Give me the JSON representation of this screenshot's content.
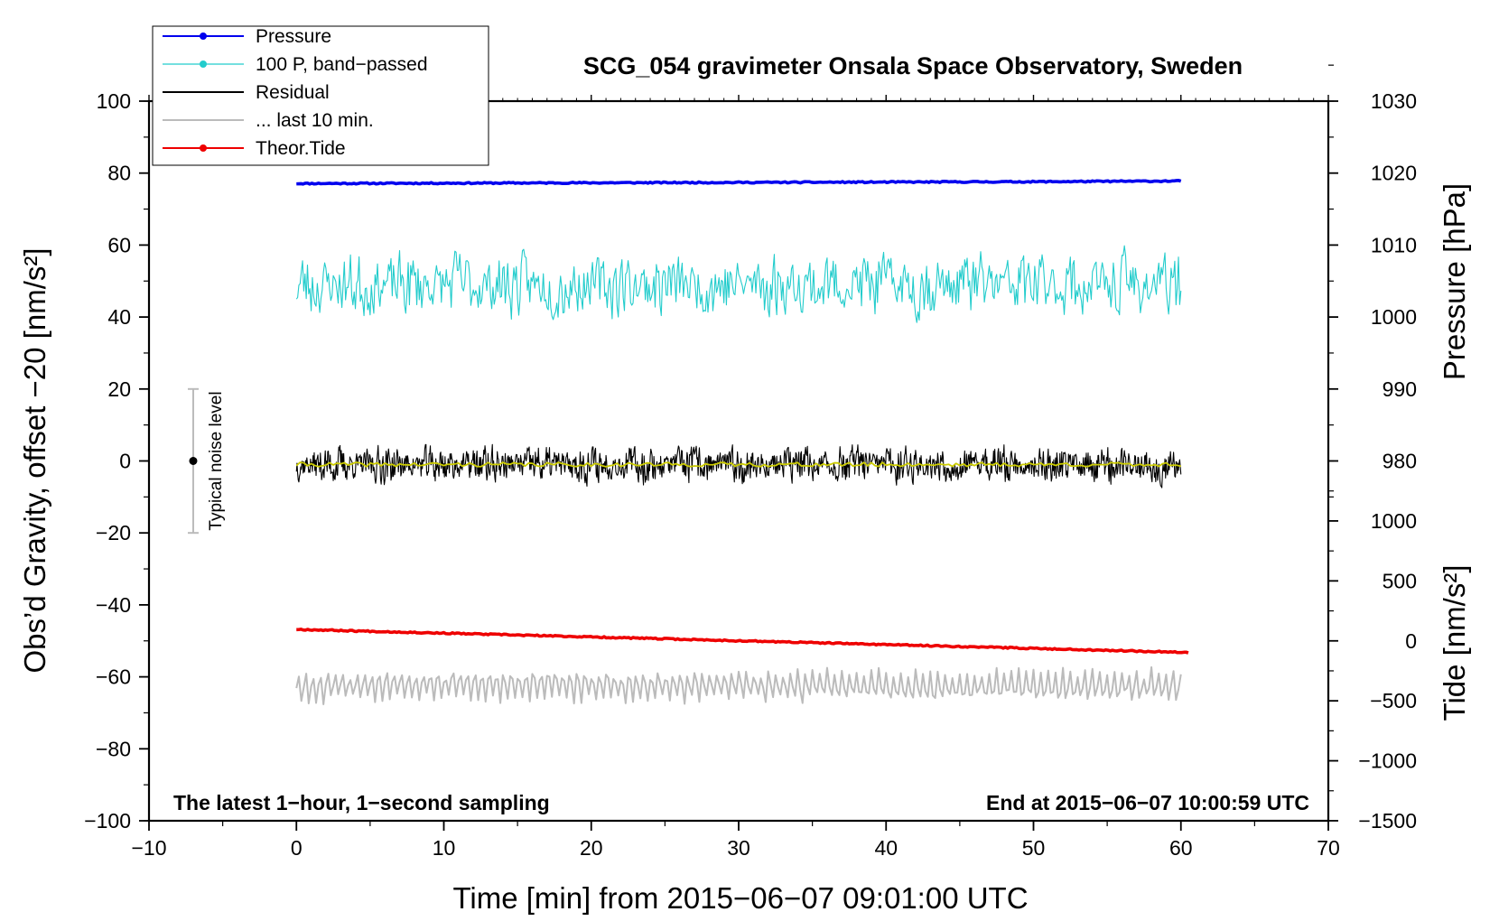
{
  "chart_data": {
    "type": "line",
    "title": "SCG_054 gravimeter Onsala Space Observatory, Sweden",
    "xlabel": "Time [min] from 2015−06−07 09:01:00 UTC",
    "ylabel_left": "Obs’d Gravity, offset −20 [nm/s²]",
    "ylabel_right_top": "Pressure [hPa]",
    "ylabel_right_bottom": "Tide [nm/s²]",
    "xlim": [
      -10,
      70
    ],
    "ylim": [
      -100,
      100
    ],
    "x_ticks": [
      -10,
      0,
      10,
      20,
      30,
      40,
      50,
      60,
      70
    ],
    "x_tick_labels": [
      "−10",
      "0",
      "10",
      "20",
      "30",
      "40",
      "50",
      "60",
      "70"
    ],
    "y_ticks": [
      -100,
      -80,
      -60,
      -40,
      -20,
      0,
      20,
      40,
      60,
      80,
      100
    ],
    "y_tick_labels": [
      "−100",
      "−80",
      "−60",
      "−40",
      "−20",
      "0",
      "20",
      "40",
      "60",
      "80",
      "100"
    ],
    "pressure_axis": {
      "ticks": [
        980,
        990,
        1000,
        1010,
        1020,
        1030
      ],
      "tick_labels": [
        "980",
        "990",
        "1000",
        "1010",
        "1020",
        "1030"
      ],
      "ref_value": 1000,
      "ref_gravity": 40,
      "gravity_per_unit": 2.0
    },
    "tide_axis": {
      "ticks": [
        -1500,
        -1000,
        -500,
        0,
        500,
        1000
      ],
      "tick_labels": [
        "−1500",
        "−1000",
        "−500",
        "0",
        "500",
        "1000"
      ],
      "ref_value": 0,
      "ref_gravity": -50,
      "gravity_per_unit": 0.03333
    },
    "legend_position": "top-left",
    "series": [
      {
        "name": "Pressure",
        "color": "#0000ee",
        "style": "line-with-dot",
        "x": [
          0,
          10,
          20,
          30,
          40,
          50,
          60
        ],
        "values": [
          77.1,
          77.2,
          77.3,
          77.4,
          77.5,
          77.6,
          77.8
        ]
      },
      {
        "name": "100 P, band−passed",
        "color": "#22cccc",
        "style": "noisy",
        "x_range": [
          0,
          60
        ],
        "mean": 49,
        "amplitude": 6.5,
        "samples": 720
      },
      {
        "name": "Residual",
        "color": "#000000",
        "style": "noisy",
        "x_range": [
          0,
          60
        ],
        "mean": -1,
        "amplitude": 3.6,
        "samples": 1440
      },
      {
        "name": "... last 10 min.",
        "color": "#bbbbbb",
        "style": "smooth",
        "x_range": [
          0,
          60
        ],
        "mean": -62.5,
        "amplitude": 4.5,
        "samples": 360
      },
      {
        "name": "Theor.Tide",
        "color": "#ee0000",
        "style": "line-with-dot",
        "x": [
          0,
          60.5
        ],
        "values": [
          -46.8,
          -53.2
        ]
      },
      {
        "name": "",
        "color": "#cccc00",
        "style": "smoothed-residual",
        "x_range": [
          0,
          60
        ],
        "mean": -1,
        "amplitude": 0.6,
        "samples": 240
      }
    ],
    "noise_bar": {
      "label": "Typical noise level",
      "x": -7,
      "y_center": 0,
      "y_low": -20,
      "y_high": 20
    },
    "annotations": [
      {
        "text": "The latest 1−hour, 1−second sampling",
        "position": "bottom-left"
      },
      {
        "text": "End at 2015−06−07 10:00:59 UTC",
        "position": "bottom-right"
      }
    ]
  }
}
